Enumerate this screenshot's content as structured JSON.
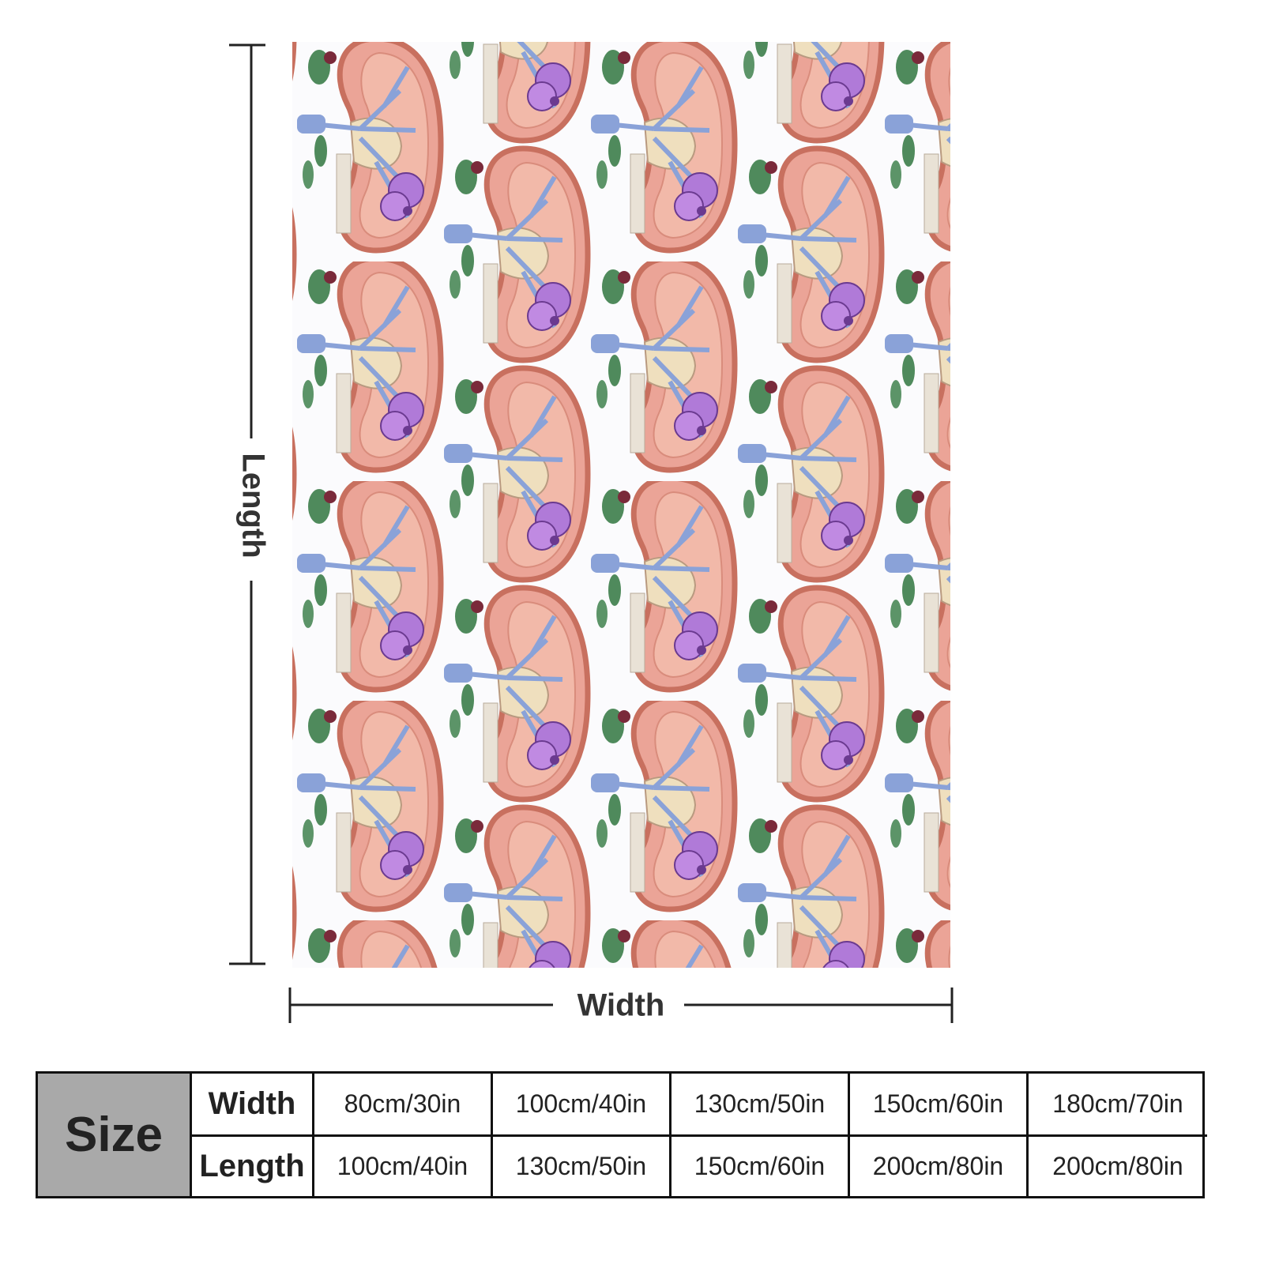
{
  "labels": {
    "length": "Length",
    "width": "Width"
  },
  "size_table": {
    "header": "Size",
    "rows": [
      {
        "label": "Width",
        "values": [
          "80cm/30in",
          "100cm/40in",
          "130cm/50in",
          "150cm/60in",
          "180cm/70in"
        ]
      },
      {
        "label": "Length",
        "values": [
          "100cm/40in",
          "130cm/50in",
          "150cm/60in",
          "200cm/80in",
          "200cm/80in"
        ]
      }
    ]
  }
}
